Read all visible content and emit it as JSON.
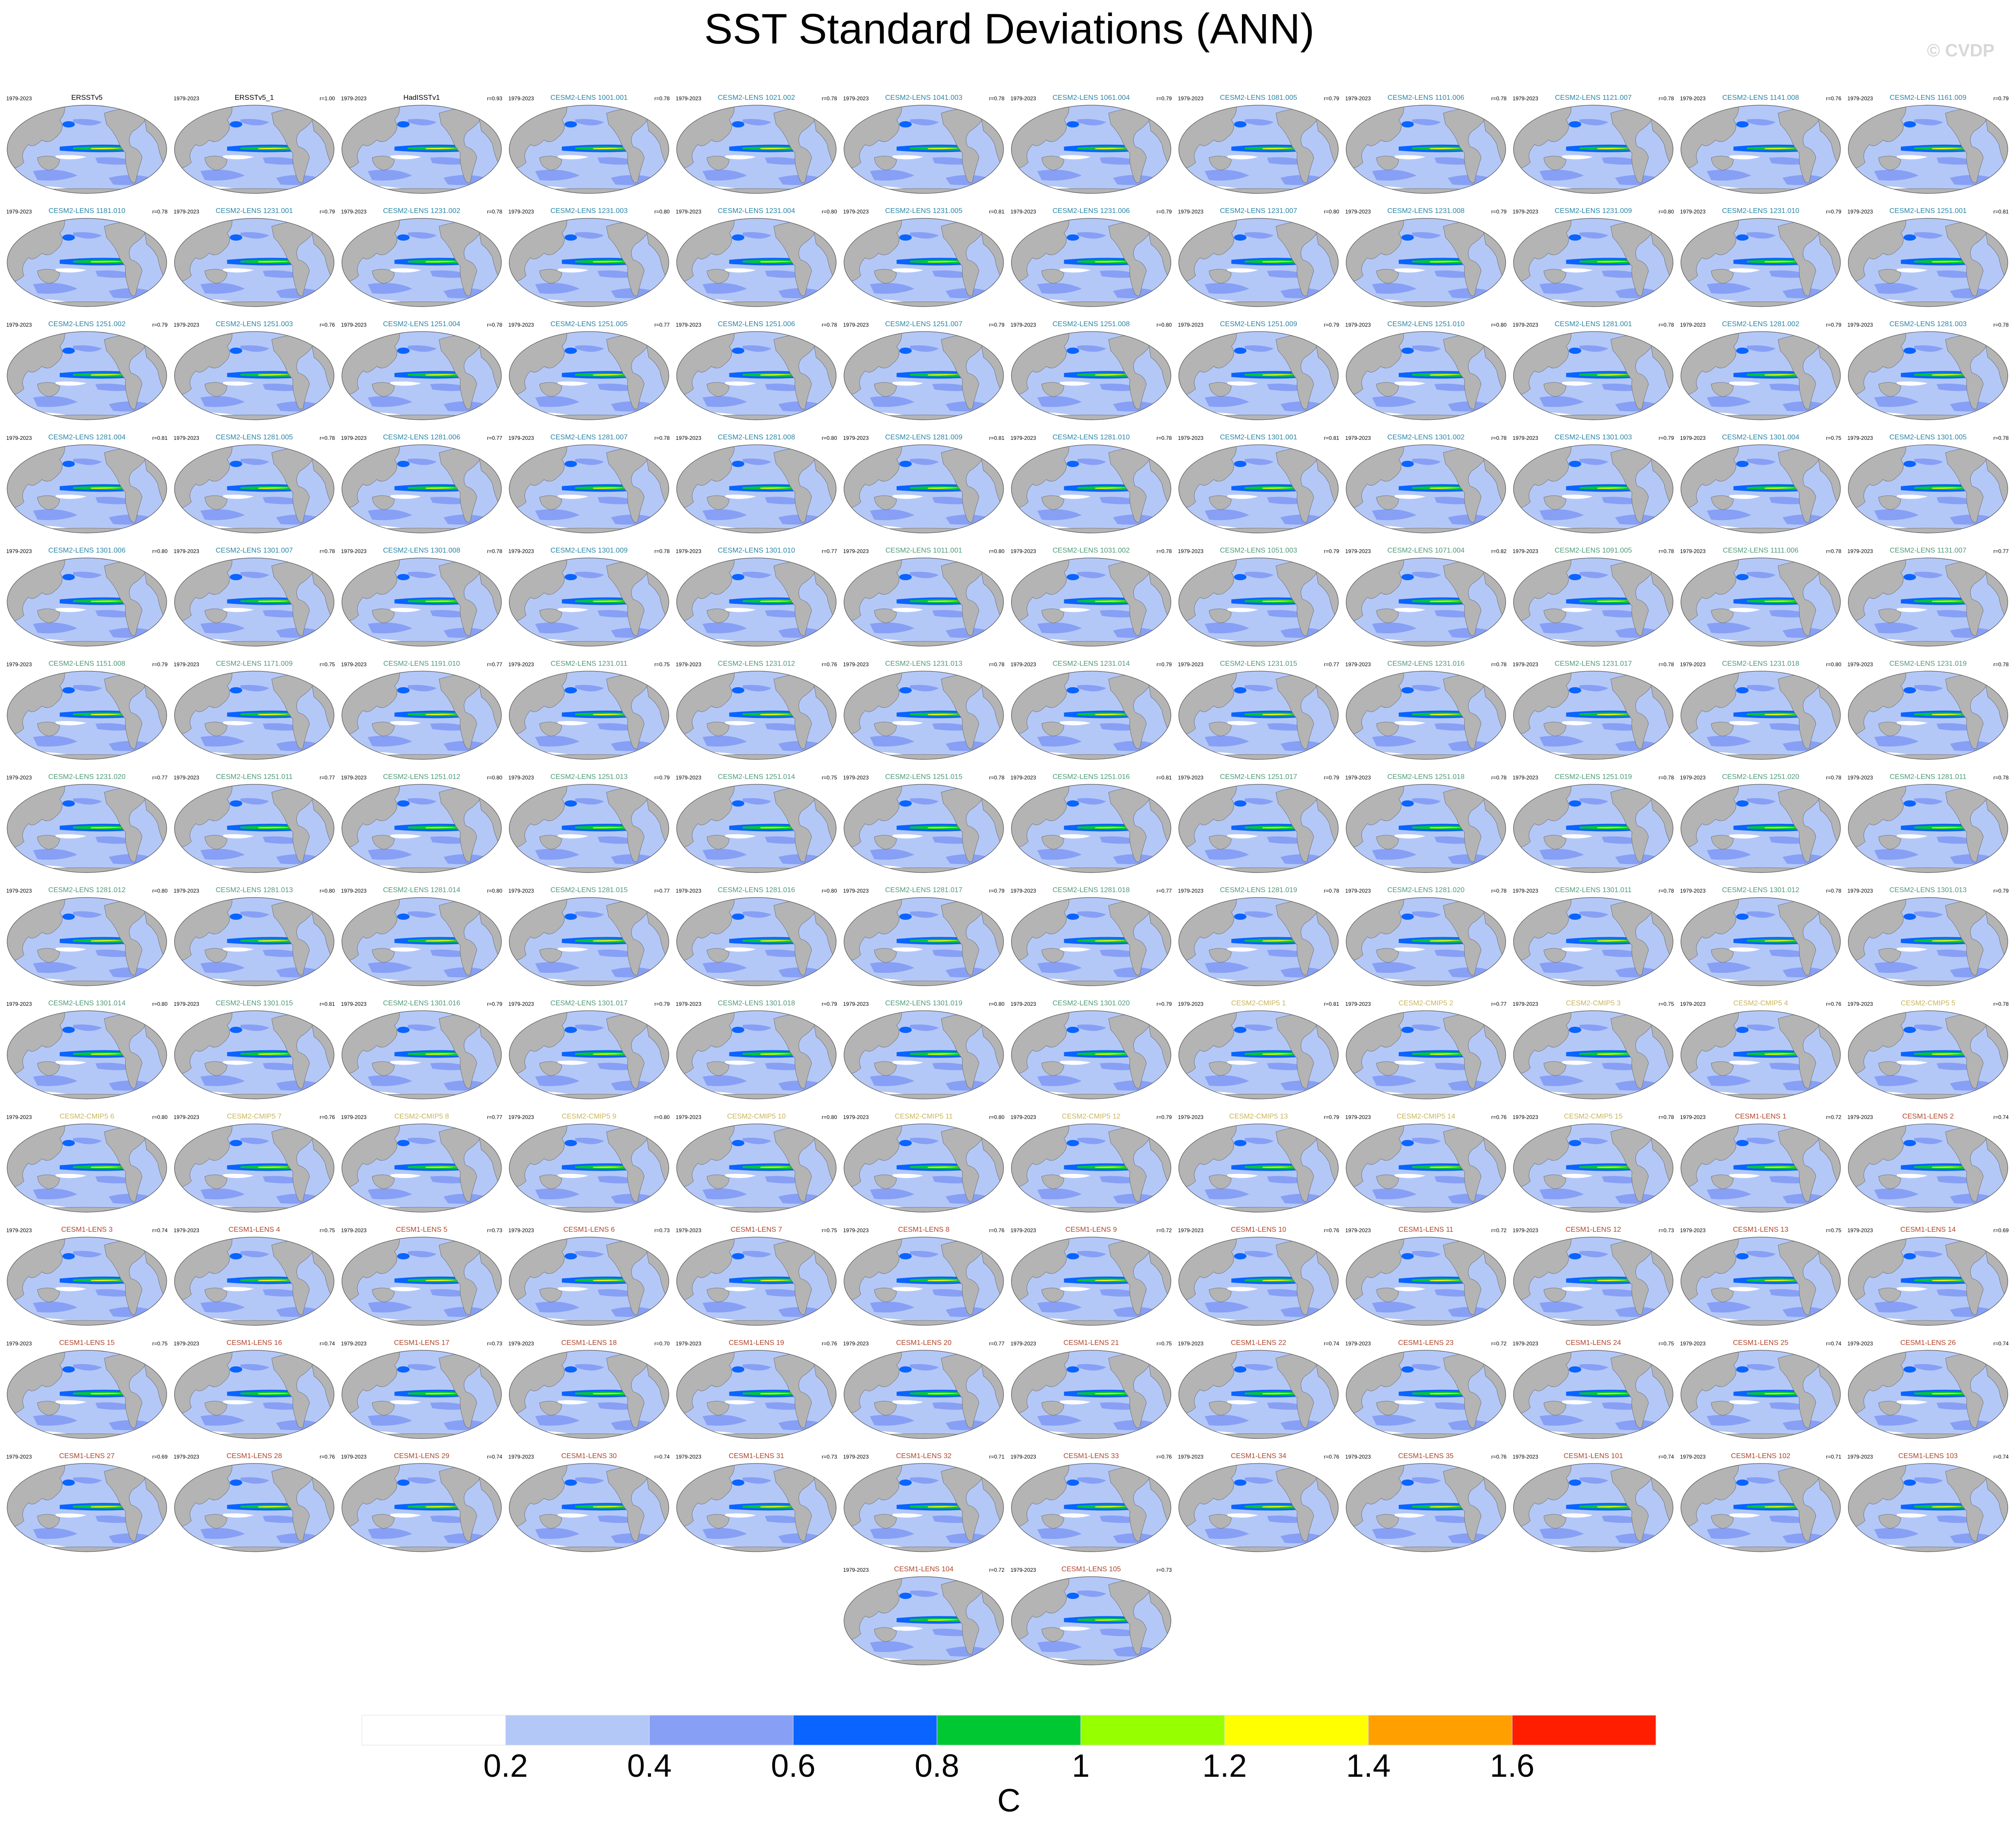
{
  "title": "SST Standard Deviations (ANN)",
  "watermark": "© CVDP",
  "groups": [
    {
      "color": "#000000",
      "panels": [
        {
          "period": "1979-2023",
          "name": "ERSSTv5"
        },
        {
          "period": "1979-2023",
          "name": "ERSSTv5_1",
          "r": "r=1.00"
        },
        {
          "period": "1979-2023",
          "name": "HadISSTv1",
          "r": "r=0.93"
        }
      ]
    },
    {
      "color": "#2a86a6",
      "panels": [
        {
          "period": "1979-2023",
          "name": "CESM2-LENS 1001.001",
          "r": "r=0.78"
        },
        {
          "period": "1979-2023",
          "name": "CESM2-LENS 1021.002",
          "r": "r=0.78"
        },
        {
          "period": "1979-2023",
          "name": "CESM2-LENS 1041.003",
          "r": "r=0.78"
        },
        {
          "period": "1979-2023",
          "name": "CESM2-LENS 1061.004",
          "r": "r=0.79"
        },
        {
          "period": "1979-2023",
          "name": "CESM2-LENS 1081.005",
          "r": "r=0.79"
        },
        {
          "period": "1979-2023",
          "name": "CESM2-LENS 1101.006",
          "r": "r=0.78"
        },
        {
          "period": "1979-2023",
          "name": "CESM2-LENS 1121.007",
          "r": "r=0.78"
        },
        {
          "period": "1979-2023",
          "name": "CESM2-LENS 1141.008",
          "r": "r=0.76"
        },
        {
          "period": "1979-2023",
          "name": "CESM2-LENS 1161.009",
          "r": "r=0.79"
        },
        {
          "period": "1979-2023",
          "name": "CESM2-LENS 1181.010",
          "r": "r=0.78"
        },
        {
          "period": "1979-2023",
          "name": "CESM2-LENS 1231.001",
          "r": "r=0.79"
        },
        {
          "period": "1979-2023",
          "name": "CESM2-LENS 1231.002",
          "r": "r=0.78"
        },
        {
          "period": "1979-2023",
          "name": "CESM2-LENS 1231.003",
          "r": "r=0.80"
        },
        {
          "period": "1979-2023",
          "name": "CESM2-LENS 1231.004",
          "r": "r=0.80"
        },
        {
          "period": "1979-2023",
          "name": "CESM2-LENS 1231.005",
          "r": "r=0.81"
        },
        {
          "period": "1979-2023",
          "name": "CESM2-LENS 1231.006",
          "r": "r=0.79"
        },
        {
          "period": "1979-2023",
          "name": "CESM2-LENS 1231.007",
          "r": "r=0.80"
        },
        {
          "period": "1979-2023",
          "name": "CESM2-LENS 1231.008",
          "r": "r=0.79"
        },
        {
          "period": "1979-2023",
          "name": "CESM2-LENS 1231.009",
          "r": "r=0.80"
        },
        {
          "period": "1979-2023",
          "name": "CESM2-LENS 1231.010",
          "r": "r=0.79"
        },
        {
          "period": "1979-2023",
          "name": "CESM2-LENS 1251.001",
          "r": "r=0.81"
        },
        {
          "period": "1979-2023",
          "name": "CESM2-LENS 1251.002",
          "r": "r=0.79"
        },
        {
          "period": "1979-2023",
          "name": "CESM2-LENS 1251.003",
          "r": "r=0.76"
        },
        {
          "period": "1979-2023",
          "name": "CESM2-LENS 1251.004",
          "r": "r=0.78"
        },
        {
          "period": "1979-2023",
          "name": "CESM2-LENS 1251.005",
          "r": "r=0.77"
        },
        {
          "period": "1979-2023",
          "name": "CESM2-LENS 1251.006",
          "r": "r=0.78"
        },
        {
          "period": "1979-2023",
          "name": "CESM2-LENS 1251.007",
          "r": "r=0.79"
        },
        {
          "period": "1979-2023",
          "name": "CESM2-LENS 1251.008",
          "r": "r=0.80"
        },
        {
          "period": "1979-2023",
          "name": "CESM2-LENS 1251.009",
          "r": "r=0.79"
        },
        {
          "period": "1979-2023",
          "name": "CESM2-LENS 1251.010",
          "r": "r=0.80"
        },
        {
          "period": "1979-2023",
          "name": "CESM2-LENS 1281.001",
          "r": "r=0.78"
        },
        {
          "period": "1979-2023",
          "name": "CESM2-LENS 1281.002",
          "r": "r=0.79"
        },
        {
          "period": "1979-2023",
          "name": "CESM2-LENS 1281.003",
          "r": "r=0.78"
        },
        {
          "period": "1979-2023",
          "name": "CESM2-LENS 1281.004",
          "r": "r=0.81"
        },
        {
          "period": "1979-2023",
          "name": "CESM2-LENS 1281.005",
          "r": "r=0.78"
        },
        {
          "period": "1979-2023",
          "name": "CESM2-LENS 1281.006",
          "r": "r=0.77"
        },
        {
          "period": "1979-2023",
          "name": "CESM2-LENS 1281.007",
          "r": "r=0.78"
        },
        {
          "period": "1979-2023",
          "name": "CESM2-LENS 1281.008",
          "r": "r=0.80"
        },
        {
          "period": "1979-2023",
          "name": "CESM2-LENS 1281.009",
          "r": "r=0.81"
        },
        {
          "period": "1979-2023",
          "name": "CESM2-LENS 1281.010",
          "r": "r=0.78"
        },
        {
          "period": "1979-2023",
          "name": "CESM2-LENS 1301.001",
          "r": "r=0.81"
        },
        {
          "period": "1979-2023",
          "name": "CESM2-LENS 1301.002",
          "r": "r=0.78"
        },
        {
          "period": "1979-2023",
          "name": "CESM2-LENS 1301.003",
          "r": "r=0.79"
        },
        {
          "period": "1979-2023",
          "name": "CESM2-LENS 1301.004",
          "r": "r=0.75"
        },
        {
          "period": "1979-2023",
          "name": "CESM2-LENS 1301.005",
          "r": "r=0.78"
        },
        {
          "period": "1979-2023",
          "name": "CESM2-LENS 1301.006",
          "r": "r=0.80"
        },
        {
          "period": "1979-2023",
          "name": "CESM2-LENS 1301.007",
          "r": "r=0.78"
        },
        {
          "period": "1979-2023",
          "name": "CESM2-LENS 1301.008",
          "r": "r=0.78"
        },
        {
          "period": "1979-2023",
          "name": "CESM2-LENS 1301.009",
          "r": "r=0.78"
        },
        {
          "period": "1979-2023",
          "name": "CESM2-LENS 1301.010",
          "r": "r=0.77"
        }
      ]
    },
    {
      "color": "#4f9a78",
      "panels": [
        {
          "period": "1979-2023",
          "name": "CESM2-LENS 1011.001",
          "r": "r=0.80"
        },
        {
          "period": "1979-2023",
          "name": "CESM2-LENS 1031.002",
          "r": "r=0.78"
        },
        {
          "period": "1979-2023",
          "name": "CESM2-LENS 1051.003",
          "r": "r=0.79"
        },
        {
          "period": "1979-2023",
          "name": "CESM2-LENS 1071.004",
          "r": "r=0.82"
        },
        {
          "period": "1979-2023",
          "name": "CESM2-LENS 1091.005",
          "r": "r=0.78"
        },
        {
          "period": "1979-2023",
          "name": "CESM2-LENS 1111.006",
          "r": "r=0.78"
        },
        {
          "period": "1979-2023",
          "name": "CESM2-LENS 1131.007",
          "r": "r=0.77"
        },
        {
          "period": "1979-2023",
          "name": "CESM2-LENS 1151.008",
          "r": "r=0.79"
        },
        {
          "period": "1979-2023",
          "name": "CESM2-LENS 1171.009",
          "r": "r=0.75"
        },
        {
          "period": "1979-2023",
          "name": "CESM2-LENS 1191.010",
          "r": "r=0.77"
        },
        {
          "period": "1979-2023",
          "name": "CESM2-LENS 1231.011",
          "r": "r=0.75"
        },
        {
          "period": "1979-2023",
          "name": "CESM2-LENS 1231.012",
          "r": "r=0.76"
        },
        {
          "period": "1979-2023",
          "name": "CESM2-LENS 1231.013",
          "r": "r=0.78"
        },
        {
          "period": "1979-2023",
          "name": "CESM2-LENS 1231.014",
          "r": "r=0.79"
        },
        {
          "period": "1979-2023",
          "name": "CESM2-LENS 1231.015",
          "r": "r=0.77"
        },
        {
          "period": "1979-2023",
          "name": "CESM2-LENS 1231.016",
          "r": "r=0.78"
        },
        {
          "period": "1979-2023",
          "name": "CESM2-LENS 1231.017",
          "r": "r=0.78"
        },
        {
          "period": "1979-2023",
          "name": "CESM2-LENS 1231.018",
          "r": "r=0.80"
        },
        {
          "period": "1979-2023",
          "name": "CESM2-LENS 1231.019",
          "r": "r=0.78"
        },
        {
          "period": "1979-2023",
          "name": "CESM2-LENS 1231.020",
          "r": "r=0.77"
        },
        {
          "period": "1979-2023",
          "name": "CESM2-LENS 1251.011",
          "r": "r=0.77"
        },
        {
          "period": "1979-2023",
          "name": "CESM2-LENS 1251.012",
          "r": "r=0.80"
        },
        {
          "period": "1979-2023",
          "name": "CESM2-LENS 1251.013",
          "r": "r=0.79"
        },
        {
          "period": "1979-2023",
          "name": "CESM2-LENS 1251.014",
          "r": "r=0.75"
        },
        {
          "period": "1979-2023",
          "name": "CESM2-LENS 1251.015",
          "r": "r=0.78"
        },
        {
          "period": "1979-2023",
          "name": "CESM2-LENS 1251.016",
          "r": "r=0.81"
        },
        {
          "period": "1979-2023",
          "name": "CESM2-LENS 1251.017",
          "r": "r=0.79"
        },
        {
          "period": "1979-2023",
          "name": "CESM2-LENS 1251.018",
          "r": "r=0.78"
        },
        {
          "period": "1979-2023",
          "name": "CESM2-LENS 1251.019",
          "r": "r=0.78"
        },
        {
          "period": "1979-2023",
          "name": "CESM2-LENS 1251.020",
          "r": "r=0.78"
        },
        {
          "period": "1979-2023",
          "name": "CESM2-LENS 1281.011",
          "r": "r=0.78"
        },
        {
          "period": "1979-2023",
          "name": "CESM2-LENS 1281.012",
          "r": "r=0.80"
        },
        {
          "period": "1979-2023",
          "name": "CESM2-LENS 1281.013",
          "r": "r=0.80"
        },
        {
          "period": "1979-2023",
          "name": "CESM2-LENS 1281.014",
          "r": "r=0.80"
        },
        {
          "period": "1979-2023",
          "name": "CESM2-LENS 1281.015",
          "r": "r=0.77"
        },
        {
          "period": "1979-2023",
          "name": "CESM2-LENS 1281.016",
          "r": "r=0.80"
        },
        {
          "period": "1979-2023",
          "name": "CESM2-LENS 1281.017",
          "r": "r=0.79"
        },
        {
          "period": "1979-2023",
          "name": "CESM2-LENS 1281.018",
          "r": "r=0.77"
        },
        {
          "period": "1979-2023",
          "name": "CESM2-LENS 1281.019",
          "r": "r=0.78"
        },
        {
          "period": "1979-2023",
          "name": "CESM2-LENS 1281.020",
          "r": "r=0.78"
        },
        {
          "period": "1979-2023",
          "name": "CESM2-LENS 1301.011",
          "r": "r=0.78"
        },
        {
          "period": "1979-2023",
          "name": "CESM2-LENS 1301.012",
          "r": "r=0.78"
        },
        {
          "period": "1979-2023",
          "name": "CESM2-LENS 1301.013",
          "r": "r=0.79"
        },
        {
          "period": "1979-2023",
          "name": "CESM2-LENS 1301.014",
          "r": "r=0.80"
        },
        {
          "period": "1979-2023",
          "name": "CESM2-LENS 1301.015",
          "r": "r=0.81"
        },
        {
          "period": "1979-2023",
          "name": "CESM2-LENS 1301.016",
          "r": "r=0.79"
        },
        {
          "period": "1979-2023",
          "name": "CESM2-LENS 1301.017",
          "r": "r=0.79"
        },
        {
          "period": "1979-2023",
          "name": "CESM2-LENS 1301.018",
          "r": "r=0.79"
        },
        {
          "period": "1979-2023",
          "name": "CESM2-LENS 1301.019",
          "r": "r=0.80"
        },
        {
          "period": "1979-2023",
          "name": "CESM2-LENS 1301.020",
          "r": "r=0.79"
        }
      ]
    },
    {
      "color": "#c9b45a",
      "panels": [
        {
          "period": "1979-2023",
          "name": "CESM2-CMIP5 1",
          "r": "r=0.81"
        },
        {
          "period": "1979-2023",
          "name": "CESM2-CMIP5 2",
          "r": "r=0.77"
        },
        {
          "period": "1979-2023",
          "name": "CESM2-CMIP5 3",
          "r": "r=0.75"
        },
        {
          "period": "1979-2023",
          "name": "CESM2-CMIP5 4",
          "r": "r=0.76"
        },
        {
          "period": "1979-2023",
          "name": "CESM2-CMIP5 5",
          "r": "r=0.78"
        },
        {
          "period": "1979-2023",
          "name": "CESM2-CMIP5 6",
          "r": "r=0.80"
        },
        {
          "period": "1979-2023",
          "name": "CESM2-CMIP5 7",
          "r": "r=0.76"
        },
        {
          "period": "1979-2023",
          "name": "CESM2-CMIP5 8",
          "r": "r=0.77"
        },
        {
          "period": "1979-2023",
          "name": "CESM2-CMIP5 9",
          "r": "r=0.80"
        },
        {
          "period": "1979-2023",
          "name": "CESM2-CMIP5 10",
          "r": "r=0.80"
        },
        {
          "period": "1979-2023",
          "name": "CESM2-CMIP5 11",
          "r": "r=0.80"
        },
        {
          "period": "1979-2023",
          "name": "CESM2-CMIP5 12",
          "r": "r=0.79"
        },
        {
          "period": "1979-2023",
          "name": "CESM2-CMIP5 13",
          "r": "r=0.79"
        },
        {
          "period": "1979-2023",
          "name": "CESM2-CMIP5 14",
          "r": "r=0.76"
        },
        {
          "period": "1979-2023",
          "name": "CESM2-CMIP5 15",
          "r": "r=0.78"
        }
      ]
    },
    {
      "color": "#b0452a",
      "panels": [
        {
          "period": "1979-2023",
          "name": "CESM1-LENS 1",
          "r": "r=0.72"
        },
        {
          "period": "1979-2023",
          "name": "CESM1-LENS 2",
          "r": "r=0.74"
        },
        {
          "period": "1979-2023",
          "name": "CESM1-LENS 3",
          "r": "r=0.74"
        },
        {
          "period": "1979-2023",
          "name": "CESM1-LENS 4",
          "r": "r=0.75"
        },
        {
          "period": "1979-2023",
          "name": "CESM1-LENS 5",
          "r": "r=0.73"
        },
        {
          "period": "1979-2023",
          "name": "CESM1-LENS 6",
          "r": "r=0.73"
        },
        {
          "period": "1979-2023",
          "name": "CESM1-LENS 7",
          "r": "r=0.75"
        },
        {
          "period": "1979-2023",
          "name": "CESM1-LENS 8",
          "r": "r=0.76"
        },
        {
          "period": "1979-2023",
          "name": "CESM1-LENS 9",
          "r": "r=0.72"
        },
        {
          "period": "1979-2023",
          "name": "CESM1-LENS 10",
          "r": "r=0.76"
        },
        {
          "period": "1979-2023",
          "name": "CESM1-LENS 11",
          "r": "r=0.72"
        },
        {
          "period": "1979-2023",
          "name": "CESM1-LENS 12",
          "r": "r=0.73"
        },
        {
          "period": "1979-2023",
          "name": "CESM1-LENS 13",
          "r": "r=0.75"
        },
        {
          "period": "1979-2023",
          "name": "CESM1-LENS 14",
          "r": "r=0.69"
        },
        {
          "period": "1979-2023",
          "name": "CESM1-LENS 15",
          "r": "r=0.75"
        },
        {
          "period": "1979-2023",
          "name": "CESM1-LENS 16",
          "r": "r=0.74"
        },
        {
          "period": "1979-2023",
          "name": "CESM1-LENS 17",
          "r": "r=0.73"
        },
        {
          "period": "1979-2023",
          "name": "CESM1-LENS 18",
          "r": "r=0.70"
        },
        {
          "period": "1979-2023",
          "name": "CESM1-LENS 19",
          "r": "r=0.76"
        },
        {
          "period": "1979-2023",
          "name": "CESM1-LENS 20",
          "r": "r=0.77"
        },
        {
          "period": "1979-2023",
          "name": "CESM1-LENS 21",
          "r": "r=0.75"
        },
        {
          "period": "1979-2023",
          "name": "CESM1-LENS 22",
          "r": "r=0.74"
        },
        {
          "period": "1979-2023",
          "name": "CESM1-LENS 23",
          "r": "r=0.72"
        },
        {
          "period": "1979-2023",
          "name": "CESM1-LENS 24",
          "r": "r=0.75"
        },
        {
          "period": "1979-2023",
          "name": "CESM1-LENS 25",
          "r": "r=0.74"
        },
        {
          "period": "1979-2023",
          "name": "CESM1-LENS 26",
          "r": "r=0.74"
        },
        {
          "period": "1979-2023",
          "name": "CESM1-LENS 27",
          "r": "r=0.69"
        },
        {
          "period": "1979-2023",
          "name": "CESM1-LENS 28",
          "r": "r=0.76"
        },
        {
          "period": "1979-2023",
          "name": "CESM1-LENS 29",
          "r": "r=0.74"
        },
        {
          "period": "1979-2023",
          "name": "CESM1-LENS 30",
          "r": "r=0.74"
        },
        {
          "period": "1979-2023",
          "name": "CESM1-LENS 31",
          "r": "r=0.73"
        },
        {
          "period": "1979-2023",
          "name": "CESM1-LENS 32",
          "r": "r=0.71"
        },
        {
          "period": "1979-2023",
          "name": "CESM1-LENS 33",
          "r": "r=0.76"
        },
        {
          "period": "1979-2023",
          "name": "CESM1-LENS 34",
          "r": "r=0.76"
        },
        {
          "period": "1979-2023",
          "name": "CESM1-LENS 35",
          "r": "r=0.76"
        },
        {
          "period": "1979-2023",
          "name": "CESM1-LENS 101",
          "r": "r=0.74"
        },
        {
          "period": "1979-2023",
          "name": "CESM1-LENS 102",
          "r": "r=0.71"
        },
        {
          "period": "1979-2023",
          "name": "CESM1-LENS 103",
          "r": "r=0.74"
        },
        {
          "period": "1979-2023",
          "name": "CESM1-LENS 104",
          "r": "r=0.72"
        },
        {
          "period": "1979-2023",
          "name": "CESM1-LENS 105",
          "r": "r=0.73"
        }
      ]
    }
  ],
  "colorbar": {
    "range": [
      0,
      1.8
    ],
    "colors": [
      "#ffffff",
      "#b4c8f8",
      "#87a0f5",
      "#0a64ff",
      "#00c832",
      "#96ff00",
      "#ffff00",
      "#ffa000",
      "#ff1e00"
    ],
    "ticks": [
      0.2,
      0.4,
      0.6,
      0.8,
      1,
      1.2,
      1.4,
      1.6
    ],
    "label": "C"
  }
}
